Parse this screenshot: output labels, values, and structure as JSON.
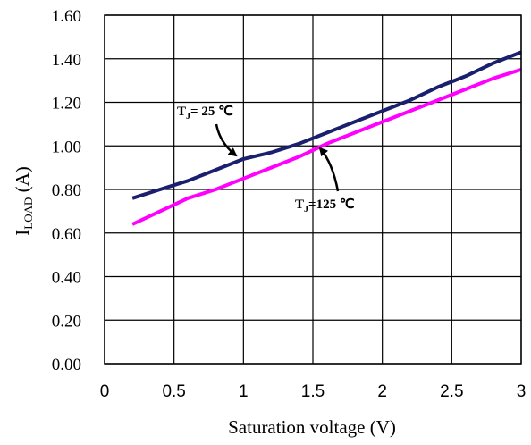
{
  "chart_data": {
    "type": "line",
    "title": "",
    "xlabel": "Saturation voltage (V)",
    "ylabel": {
      "main": "I",
      "sub": "LOAD",
      "unit": " (A)"
    },
    "xlim": [
      0,
      3
    ],
    "ylim": [
      0,
      1.6
    ],
    "xticks": [
      "0",
      "0.5",
      "1",
      "1.5",
      "2",
      "2.5",
      "3"
    ],
    "yticks": [
      "0.00",
      "0.20",
      "0.40",
      "0.60",
      "0.80",
      "1.00",
      "1.20",
      "1.40",
      "1.60"
    ],
    "grid": true,
    "series": [
      {
        "name": "T_J = 25 ℃",
        "color": "#1a1f6e",
        "x": [
          0.2,
          0.4,
          0.6,
          0.8,
          1.0,
          1.2,
          1.4,
          1.6,
          1.8,
          2.0,
          2.2,
          2.4,
          2.6,
          2.8,
          3.0
        ],
        "y": [
          0.76,
          0.8,
          0.84,
          0.89,
          0.94,
          0.97,
          1.01,
          1.06,
          1.11,
          1.16,
          1.21,
          1.27,
          1.32,
          1.38,
          1.43
        ]
      },
      {
        "name": "T_J = 125 ℃",
        "color": "#ff00ff",
        "x": [
          0.2,
          0.4,
          0.6,
          0.8,
          1.0,
          1.2,
          1.4,
          1.6,
          1.8,
          2.0,
          2.2,
          2.4,
          2.6,
          2.8,
          3.0
        ],
        "y": [
          0.64,
          0.7,
          0.76,
          0.8,
          0.85,
          0.9,
          0.95,
          1.01,
          1.06,
          1.11,
          1.16,
          1.21,
          1.26,
          1.31,
          1.35
        ]
      }
    ],
    "annotations": [
      {
        "id": "tj25",
        "main": "T",
        "sub": "J",
        "rest": "= 25  ℃",
        "target_x": 0.95,
        "target_y": 0.93
      },
      {
        "id": "tj125",
        "main": "T",
        "sub": "J",
        "rest": "=125  ℃",
        "target_x": 1.55,
        "target_y": 1.01
      }
    ]
  }
}
